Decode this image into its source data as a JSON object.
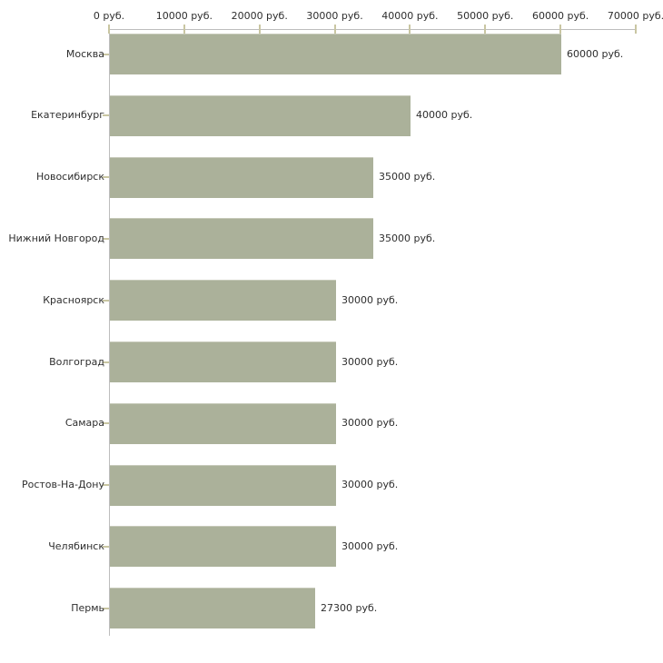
{
  "chart_data": {
    "type": "bar",
    "orientation": "horizontal",
    "title": "",
    "unit": "руб.",
    "categories": [
      "Москва",
      "Екатеринбург",
      "Новосибирск",
      "Нижний Новгород",
      "Красноярск",
      "Волгоград",
      "Самара",
      "Ростов-На-Дону",
      "Челябинск",
      "Пермь"
    ],
    "values": [
      60000,
      40000,
      35000,
      35000,
      30000,
      30000,
      30000,
      30000,
      30000,
      27300
    ],
    "value_labels": [
      "60000 руб.",
      "40000 руб.",
      "35000 руб.",
      "35000 руб.",
      "30000 руб.",
      "30000 руб.",
      "30000 руб.",
      "30000 руб.",
      "30000 руб.",
      "27300 руб."
    ],
    "x_axis": {
      "position": "top",
      "min": 0,
      "max": 70000,
      "ticks": [
        0,
        10000,
        20000,
        30000,
        40000,
        50000,
        60000,
        70000
      ],
      "tick_labels": [
        "0 руб.",
        "10000 руб.",
        "20000 руб.",
        "30000 руб.",
        "40000 руб.",
        "50000 руб.",
        "60000 руб.",
        "70000 руб."
      ]
    },
    "grid": false,
    "legend": false,
    "colors": {
      "bar": "#abb19a",
      "axis_line": "#bdbdbd",
      "tick": "#c9c6a2",
      "text": "#2e2e2e",
      "background": "#ffffff"
    }
  }
}
